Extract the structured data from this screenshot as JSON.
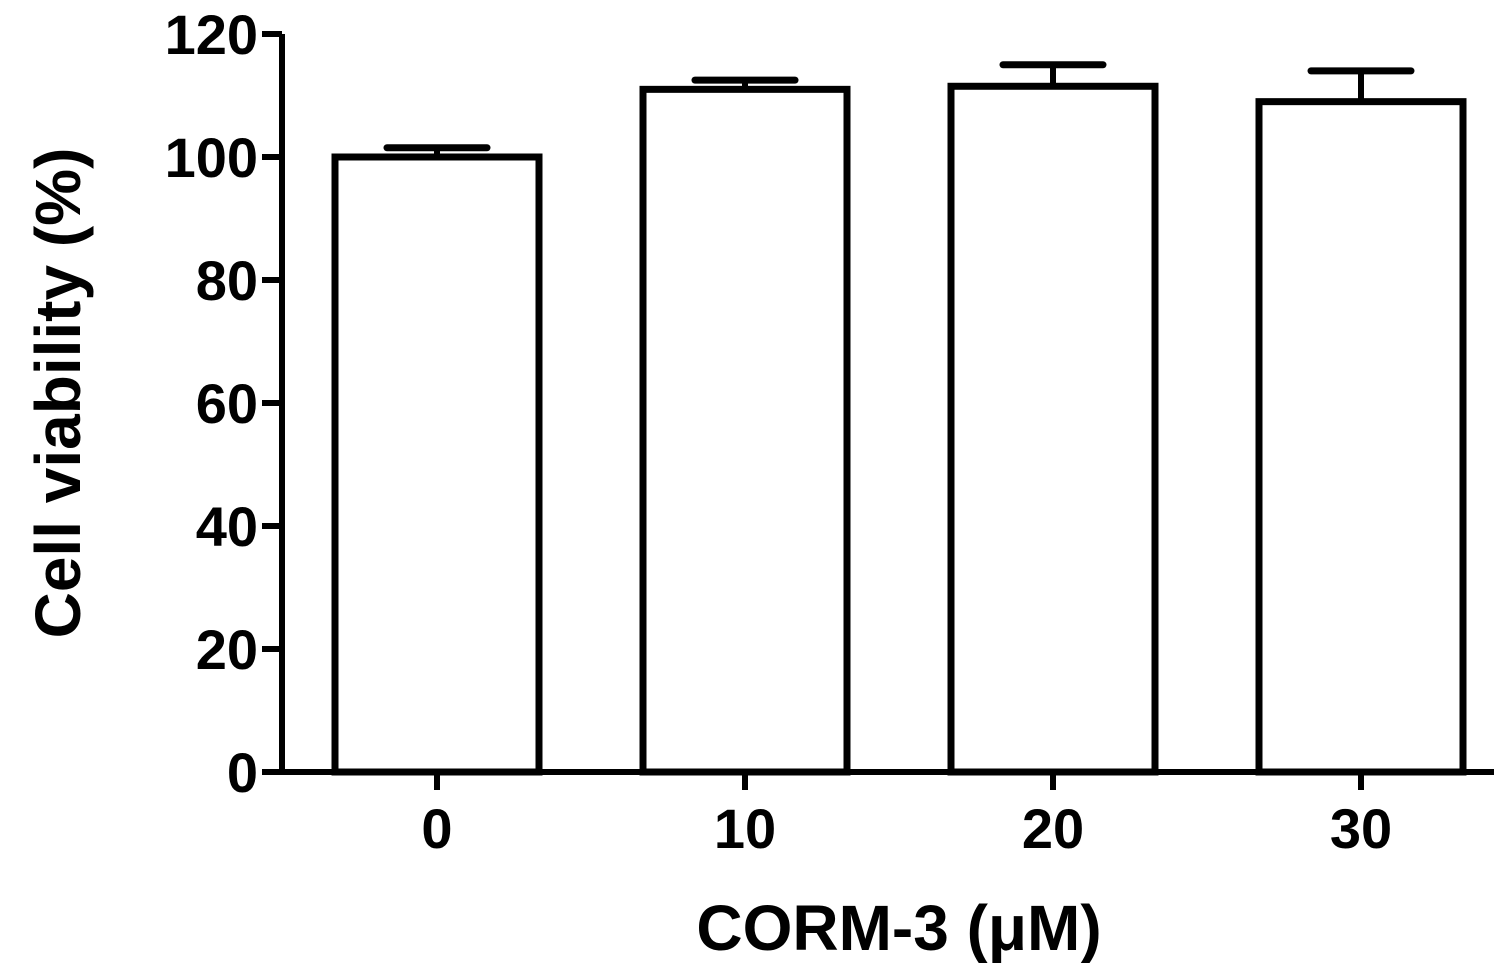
{
  "chart_data": {
    "type": "bar",
    "title": "",
    "xlabel": "CORM-3 (μM)",
    "ylabel": "Cell viability (%)",
    "categories": [
      "0",
      "10",
      "20",
      "30"
    ],
    "values": [
      100,
      111,
      111.5,
      109
    ],
    "error_upper": [
      1.5,
      1.5,
      3.5,
      5
    ],
    "ylim": [
      0,
      120
    ],
    "yticks": [
      0,
      20,
      40,
      60,
      80,
      100,
      120
    ],
    "ytick_labels": [
      "0",
      "20",
      "40",
      "60",
      "80",
      "100",
      "120"
    ],
    "grid": false,
    "legend": "none",
    "bar_fill": "#ffffff",
    "bar_stroke": "#000000"
  }
}
